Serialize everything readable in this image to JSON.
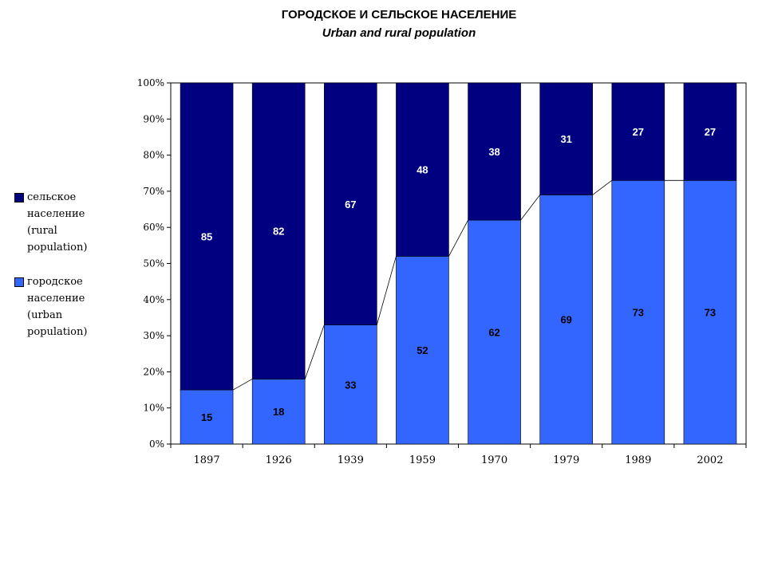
{
  "chart_data": {
    "type": "bar",
    "stacked": true,
    "percent_axis": true,
    "title": "ГОРОДСКОЕ И СЕЛЬСКОЕ НАСЕЛЕНИЕ",
    "subtitle": "Urban and rural population",
    "categories": [
      "1897",
      "1926",
      "1939",
      "1959",
      "1970",
      "1979",
      "1989",
      "2002"
    ],
    "series": [
      {
        "name": "городское население (urban population)",
        "name_lines": [
          "городское",
          "население",
          "(urban",
          "population)"
        ],
        "color": "#3366ff",
        "values": [
          15,
          18,
          33,
          52,
          62,
          69,
          73,
          73
        ]
      },
      {
        "name": "сельское население (rural population)",
        "name_lines": [
          "сельское",
          "население",
          "(rural",
          "population)"
        ],
        "color": "#000080",
        "values": [
          85,
          82,
          67,
          48,
          38,
          31,
          27,
          27
        ]
      }
    ],
    "ylim": [
      0,
      100
    ],
    "yticks": [
      "0%",
      "10%",
      "20%",
      "30%",
      "40%",
      "50%",
      "60%",
      "70%",
      "80%",
      "90%",
      "100%"
    ],
    "series_lines": true,
    "grid": false,
    "legend_position": "left"
  }
}
